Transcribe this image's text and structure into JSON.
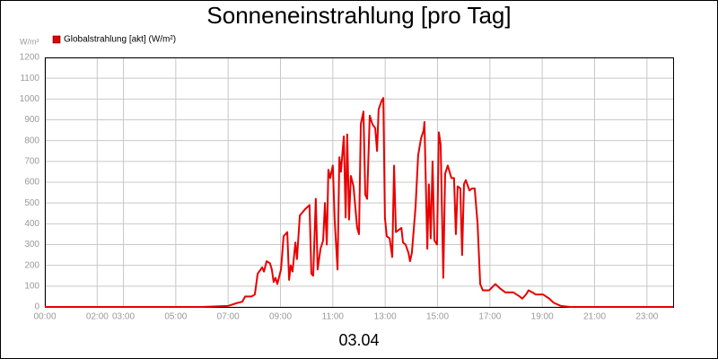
{
  "chart_data": {
    "type": "line",
    "title": "Sonneneinstrahlung [pro Tag]",
    "y_unit_label": "W/m²",
    "x_label": "03.04",
    "xlim": [
      0,
      24
    ],
    "ylim": [
      0,
      1200
    ],
    "grid": true,
    "xticks": [
      {
        "value": 0,
        "label": "00:00"
      },
      {
        "value": 2,
        "label": "02:00"
      },
      {
        "value": 3,
        "label": "03:00"
      },
      {
        "value": 5,
        "label": "05:00"
      },
      {
        "value": 7,
        "label": "07:00"
      },
      {
        "value": 9,
        "label": "09:00"
      },
      {
        "value": 11,
        "label": "11:00"
      },
      {
        "value": 13,
        "label": "13:00"
      },
      {
        "value": 15,
        "label": "15:00"
      },
      {
        "value": 17,
        "label": "17:00"
      },
      {
        "value": 19,
        "label": "19:00"
      },
      {
        "value": 21,
        "label": "21:00"
      },
      {
        "value": 23,
        "label": "23:00"
      }
    ],
    "yticks": [
      0,
      100,
      200,
      300,
      400,
      500,
      600,
      700,
      800,
      900,
      1000,
      1100,
      1200
    ],
    "x": [
      0,
      6.0,
      7.0,
      7.37,
      7.54,
      7.65,
      7.89,
      8.02,
      8.13,
      8.3,
      8.37,
      8.47,
      8.6,
      8.67,
      8.74,
      8.81,
      8.88,
      9.02,
      9.12,
      9.26,
      9.33,
      9.39,
      9.46,
      9.57,
      9.63,
      9.74,
      9.94,
      10.11,
      10.18,
      10.25,
      10.35,
      10.42,
      10.53,
      10.63,
      10.7,
      10.77,
      10.83,
      10.9,
      11.0,
      11.07,
      11.18,
      11.25,
      11.31,
      11.42,
      11.49,
      11.55,
      11.62,
      11.69,
      11.79,
      11.93,
      12.0,
      12.07,
      12.17,
      12.24,
      12.31,
      12.41,
      12.51,
      12.62,
      12.69,
      12.75,
      12.86,
      12.93,
      12.99,
      13.06,
      13.17,
      13.27,
      13.34,
      13.41,
      13.51,
      13.62,
      13.68,
      13.78,
      13.89,
      13.95,
      14.02,
      14.16,
      14.26,
      14.37,
      14.47,
      14.5,
      14.61,
      14.67,
      14.74,
      14.81,
      14.88,
      14.98,
      15.05,
      15.12,
      15.22,
      15.29,
      15.39,
      15.53,
      15.63,
      15.7,
      15.77,
      15.87,
      15.94,
      16.01,
      16.08,
      16.22,
      16.32,
      16.42,
      16.53,
      16.63,
      16.73,
      16.97,
      17.21,
      17.38,
      17.59,
      17.9,
      18.14,
      18.24,
      18.38,
      18.48,
      18.62,
      18.75,
      19.03,
      19.27,
      19.44,
      19.71,
      20.06,
      24.0
    ],
    "series": [
      {
        "name": "Globalstrahlung [akt] (W/m²)",
        "color": "#e80000",
        "values": [
          0,
          0,
          5,
          20,
          25,
          50,
          50,
          60,
          160,
          190,
          170,
          220,
          210,
          180,
          120,
          140,
          110,
          180,
          340,
          360,
          130,
          200,
          170,
          310,
          230,
          440,
          470,
          490,
          160,
          150,
          520,
          180,
          280,
          320,
          500,
          300,
          660,
          620,
          680,
          420,
          180,
          720,
          650,
          820,
          430,
          830,
          420,
          630,
          580,
          380,
          350,
          880,
          940,
          540,
          520,
          920,
          880,
          860,
          750,
          950,
          990,
          1005,
          430,
          340,
          330,
          240,
          680,
          360,
          370,
          380,
          310,
          300,
          260,
          220,
          260,
          480,
          730,
          810,
          850,
          890,
          280,
          590,
          330,
          700,
          320,
          300,
          840,
          780,
          140,
          640,
          680,
          620,
          620,
          350,
          580,
          570,
          250,
          590,
          610,
          560,
          570,
          570,
          400,
          110,
          80,
          80,
          110,
          90,
          70,
          70,
          50,
          40,
          60,
          80,
          70,
          60,
          60,
          40,
          20,
          5,
          0,
          0
        ]
      }
    ]
  }
}
